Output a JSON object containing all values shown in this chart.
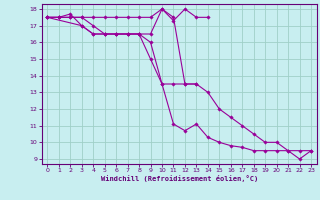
{
  "background_color": "#c8eef0",
  "grid_color": "#a0d0c8",
  "line_color": "#990099",
  "marker_color": "#990099",
  "xlabel": "Windchill (Refroidissement éolien,°C)",
  "xlabel_color": "#660077",
  "tick_color": "#660077",
  "xlim": [
    -0.5,
    23.5
  ],
  "ylim": [
    8.7,
    18.3
  ],
  "xticks": [
    0,
    1,
    2,
    3,
    4,
    5,
    6,
    7,
    8,
    9,
    10,
    11,
    12,
    13,
    14,
    15,
    16,
    17,
    18,
    19,
    20,
    21,
    22,
    23
  ],
  "yticks": [
    9,
    10,
    11,
    12,
    13,
    14,
    15,
    16,
    17,
    18
  ],
  "series1_x": [
    0,
    1,
    2,
    3,
    4,
    5,
    6,
    7,
    8,
    9,
    10,
    11,
    12,
    13,
    14,
    15,
    16,
    17,
    18,
    19,
    20,
    21,
    22,
    23
  ],
  "series1_y": [
    17.5,
    17.5,
    17.7,
    17.0,
    16.5,
    16.5,
    16.5,
    16.5,
    16.5,
    15.0,
    13.5,
    11.1,
    10.7,
    11.1,
    10.3,
    10.0,
    9.8,
    9.7,
    9.5,
    9.5,
    9.5,
    9.5,
    9.0,
    9.5
  ],
  "series2_x": [
    0,
    1,
    2,
    3,
    4,
    5,
    6,
    7,
    8,
    9,
    10,
    11,
    12,
    13,
    14,
    15,
    16,
    17,
    18,
    19,
    20,
    21,
    22,
    23
  ],
  "series2_y": [
    17.5,
    17.5,
    17.5,
    17.5,
    17.5,
    17.5,
    17.5,
    17.5,
    17.5,
    17.5,
    18.0,
    17.5,
    13.5,
    13.5,
    13.0,
    12.0,
    11.5,
    11.0,
    10.5,
    10.0,
    10.0,
    9.5,
    9.5,
    9.5
  ],
  "series3_x": [
    0,
    1,
    2,
    3,
    4,
    5,
    6,
    7,
    8,
    9,
    10,
    11,
    12,
    13
  ],
  "series3_y": [
    17.5,
    17.5,
    17.5,
    17.5,
    17.0,
    16.5,
    16.5,
    16.5,
    16.5,
    16.0,
    13.5,
    13.5,
    13.5,
    13.5
  ],
  "series4_x": [
    0,
    3,
    4,
    5,
    6,
    7,
    8,
    9,
    10,
    11,
    12,
    13,
    14
  ],
  "series4_y": [
    17.5,
    17.0,
    16.5,
    16.5,
    16.5,
    16.5,
    16.5,
    16.5,
    18.0,
    17.3,
    18.0,
    17.5,
    17.5
  ]
}
